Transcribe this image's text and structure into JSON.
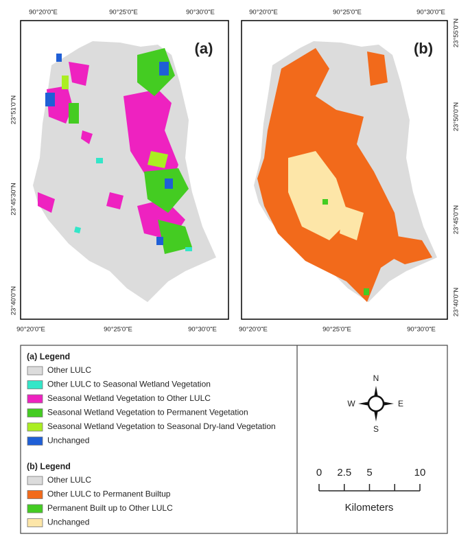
{
  "panels": [
    {
      "label": "(a)",
      "top_labels": [
        "90°20'0\"E",
        "90°25'0\"E",
        "90°30'0\"E"
      ],
      "bottom_labels": [
        "90°20'0\"E",
        "90°25'0\"E",
        "90°30'0\"E"
      ],
      "side_labels": [
        "23°51'0\"N",
        "23°45'30\"N",
        "23°40'0\"N"
      ]
    },
    {
      "label": "(b)",
      "top_labels": [
        "90°20'0\"E",
        "90°25'0\"E",
        "90°30'0\"E"
      ],
      "bottom_labels": [
        "90°20'0\"E",
        "90°25'0\"E",
        "90°30'0\"E"
      ],
      "side_labels": [
        "23°55'0\"N",
        "23°50'0\"N",
        "23°45'0\"N",
        "23°40'0\"N"
      ]
    }
  ],
  "legend_a": {
    "title": "(a) Legend",
    "items": [
      {
        "label": "Other LULC",
        "color": "#dcdcdc"
      },
      {
        "label": "Other LULC to Seasonal Wetland Vegetation",
        "color": "#33e6c8"
      },
      {
        "label": "Seasonal Wetland Vegetation to Other LULC",
        "color": "#ee22c0"
      },
      {
        "label": "Seasonal Wetland Vegetation to Permanent Vegetation",
        "color": "#44cc22"
      },
      {
        "label": "Seasonal Wetland Vegetation to Seasonal Dry-land Vegetation",
        "color": "#aaee22"
      },
      {
        "label": "Unchanged",
        "color": "#1f5fd6"
      }
    ]
  },
  "legend_b": {
    "title": "(b) Legend",
    "items": [
      {
        "label": "Other LULC",
        "color": "#dcdcdc"
      },
      {
        "label": "Other LULC to Permanent Builtup",
        "color": "#f26a1b"
      },
      {
        "label": "Permanent Built up to Other LULC",
        "color": "#44cc22"
      },
      {
        "label": "Unchanged",
        "color": "#fde6a8"
      }
    ]
  },
  "compass": {
    "north": "N",
    "east": "E",
    "south": "S",
    "west": "W"
  },
  "scale_bar": {
    "ticks": [
      0,
      2.5,
      5,
      10
    ],
    "unit": "Kilometers"
  }
}
